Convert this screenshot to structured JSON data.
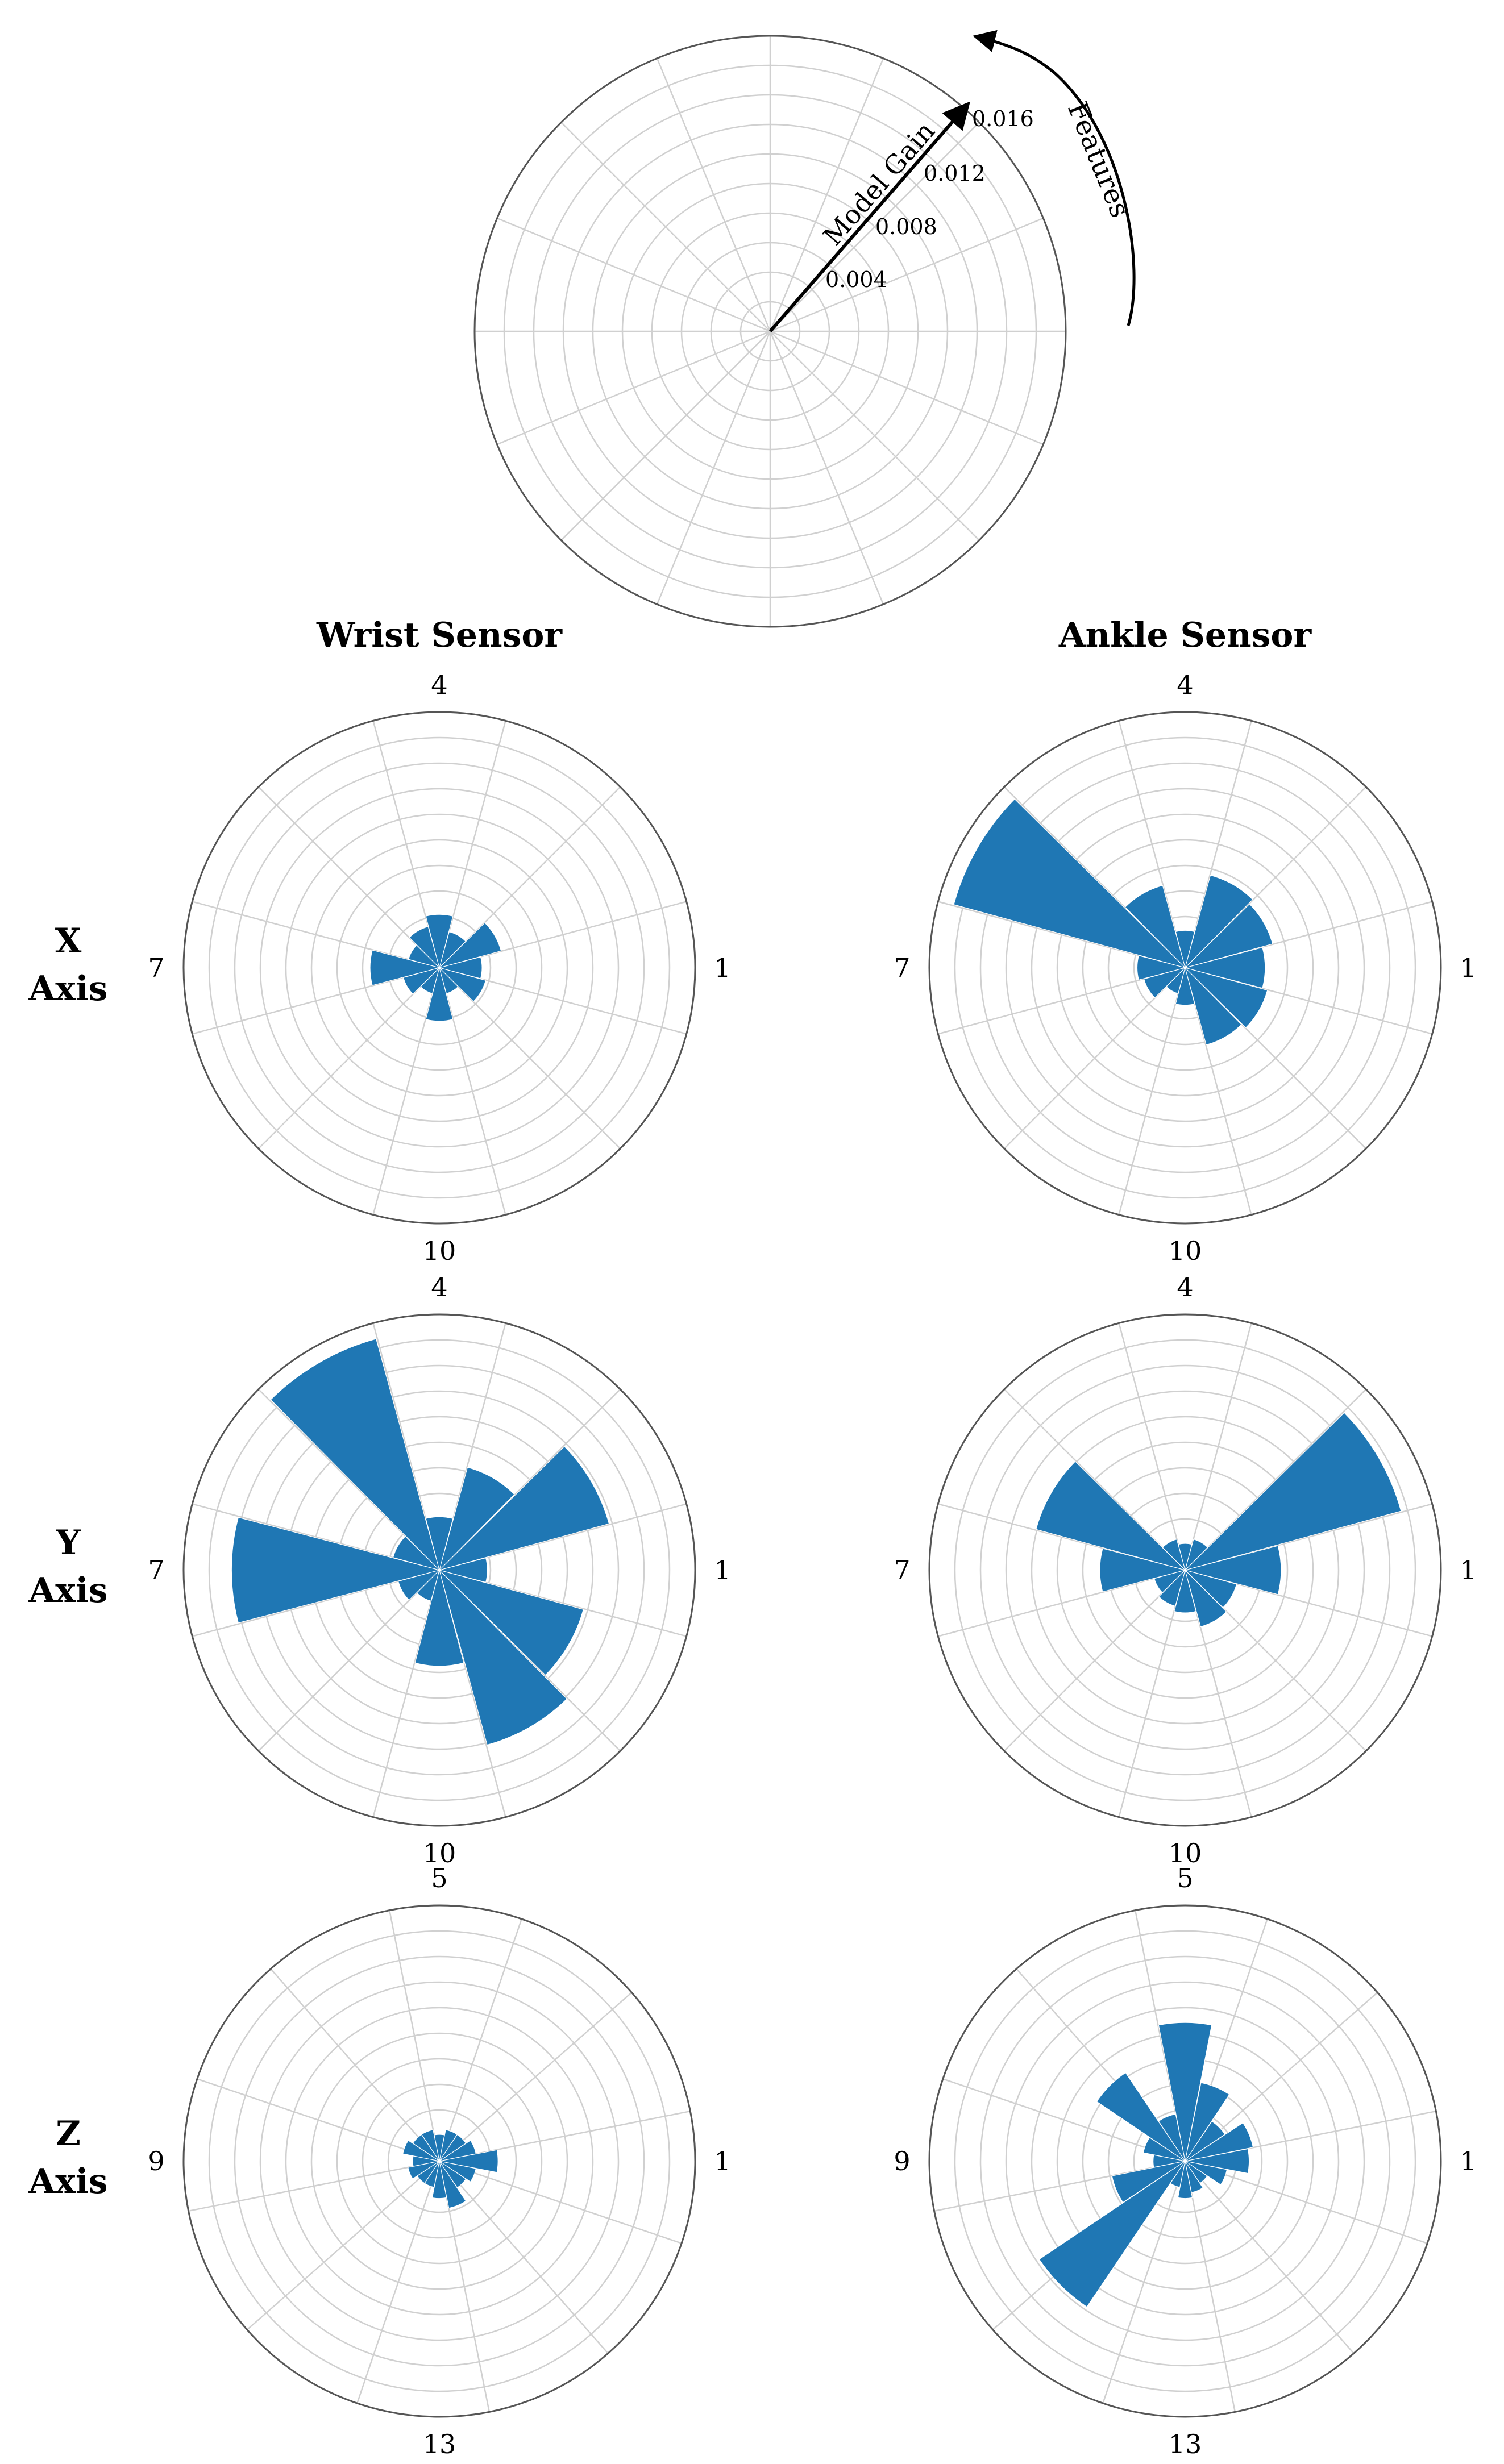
{
  "legend_plot": {
    "radial_label": "Model Gain",
    "radial_ticks": [
      "0.004",
      "0.008",
      "0.012",
      "0.016"
    ],
    "direction_label": "Features"
  },
  "column_headers": [
    "Wrist Sensor",
    "Ankle Sensor"
  ],
  "row_headers": [
    {
      "line1": "X",
      "line2": "Axis"
    },
    {
      "line1": "Y",
      "line2": "Axis"
    },
    {
      "line1": "Z",
      "line2": "Axis"
    }
  ],
  "colors": {
    "bar": "#1f77b4",
    "grid": "#d0d0d0",
    "axis": "#555555",
    "text": "#000000"
  },
  "chart_data": [
    {
      "type": "bar",
      "polar": true,
      "title": "Wrist Sensor — X Axis",
      "categories": [
        1,
        2,
        3,
        4,
        5,
        6,
        7,
        8,
        9,
        10,
        11,
        12
      ],
      "values": [
        0.0016,
        0.0024,
        0.0014,
        0.002,
        0.0016,
        0.0012,
        0.0026,
        0.0014,
        0.001,
        0.002,
        0.001,
        0.0018
      ],
      "angle_tick_labels": [
        "1",
        "4",
        "7",
        "10"
      ],
      "ylim": [
        0,
        0.0096
      ]
    },
    {
      "type": "bar",
      "polar": true,
      "title": "Ankle Sensor — X Axis",
      "categories": [
        1,
        2,
        3,
        4,
        5,
        6,
        7,
        8,
        9,
        10,
        11,
        12
      ],
      "values": [
        0.003,
        0.0034,
        0.0036,
        0.0014,
        0.0032,
        0.009,
        0.0018,
        0.0016,
        0.001,
        0.0014,
        0.003,
        0.0032
      ],
      "angle_tick_labels": [
        "1",
        "4",
        "7",
        "10"
      ],
      "ylim": [
        0,
        0.0096
      ]
    },
    {
      "type": "bar",
      "polar": true,
      "title": "Wrist Sensor — Y Axis",
      "categories": [
        1,
        2,
        3,
        4,
        5,
        6,
        7,
        8,
        9,
        10,
        11,
        12
      ],
      "values": [
        0.0018,
        0.0066,
        0.004,
        0.002,
        0.009,
        0.0018,
        0.0078,
        0.0016,
        0.0012,
        0.0036,
        0.0068,
        0.0056
      ],
      "angle_tick_labels": [
        "1",
        "4",
        "7",
        "10"
      ],
      "ylim": [
        0,
        0.0096
      ]
    },
    {
      "type": "bar",
      "polar": true,
      "title": "Ankle Sensor — Y Axis",
      "categories": [
        1,
        2,
        3,
        4,
        5,
        6,
        7,
        8,
        9,
        10,
        11,
        12
      ],
      "values": [
        0.0036,
        0.0084,
        0.0012,
        0.001,
        0.0012,
        0.0058,
        0.0032,
        0.0012,
        0.0014,
        0.0016,
        0.0022,
        0.002
      ],
      "angle_tick_labels": [
        "1",
        "4",
        "7",
        "10"
      ],
      "ylim": [
        0,
        0.0096
      ]
    },
    {
      "type": "bar",
      "polar": true,
      "title": "Wrist Sensor — Z Axis",
      "categories": [
        1,
        2,
        3,
        4,
        5,
        6,
        7,
        8,
        9,
        10,
        11,
        12,
        13,
        14,
        15,
        16
      ],
      "values": [
        0.0022,
        0.0014,
        0.0012,
        0.0012,
        0.001,
        0.0012,
        0.0012,
        0.0014,
        0.001,
        0.0012,
        0.001,
        0.001,
        0.0014,
        0.0018,
        0.0012,
        0.0014
      ],
      "angle_tick_labels": [
        "1",
        "5",
        "9",
        "13"
      ],
      "ylim": [
        0,
        0.0096
      ]
    },
    {
      "type": "bar",
      "polar": true,
      "title": "Ankle Sensor — Z Axis",
      "categories": [
        1,
        2,
        3,
        4,
        5,
        6,
        7,
        8,
        9,
        10,
        11,
        12,
        13,
        14,
        15,
        16
      ],
      "values": [
        0.0024,
        0.0026,
        0.0018,
        0.003,
        0.0052,
        0.0018,
        0.004,
        0.0016,
        0.0012,
        0.0028,
        0.0066,
        0.001,
        0.0014,
        0.0012,
        0.001,
        0.0016
      ],
      "angle_tick_labels": [
        "1",
        "5",
        "9",
        "13"
      ],
      "ylim": [
        0,
        0.0096
      ]
    }
  ]
}
